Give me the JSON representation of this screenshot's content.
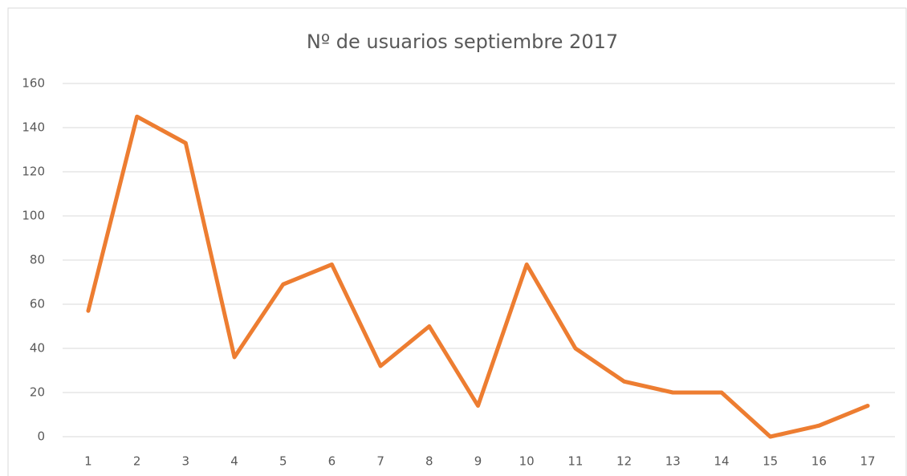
{
  "chart_data": {
    "type": "line",
    "title": "Nº de usuarios septiembre 2017",
    "categories": [
      "1",
      "2",
      "3",
      "4",
      "5",
      "6",
      "7",
      "8",
      "9",
      "10",
      "11",
      "12",
      "13",
      "14",
      "15",
      "16",
      "17"
    ],
    "values": [
      57,
      145,
      133,
      36,
      69,
      78,
      32,
      50,
      14,
      78,
      40,
      25,
      20,
      20,
      0,
      5,
      14
    ],
    "color": "#ed7d31",
    "ylim": [
      0,
      160
    ],
    "yticks": [
      0,
      20,
      40,
      60,
      80,
      100,
      120,
      140,
      160
    ],
    "grid": true
  }
}
